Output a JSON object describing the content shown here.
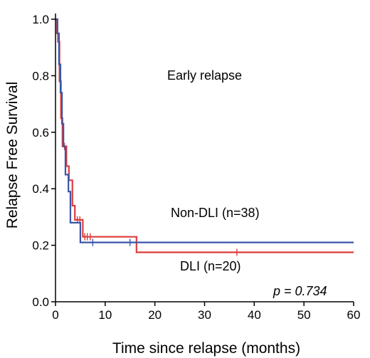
{
  "chart_data": {
    "type": "line",
    "title": "",
    "xlabel": "Time since relapse (months)",
    "ylabel": "Relapse Free Survival",
    "xlim": [
      0,
      60
    ],
    "ylim": [
      0.0,
      1.0
    ],
    "x_ticks": [
      "0",
      "10",
      "20",
      "30",
      "40",
      "50",
      "60"
    ],
    "y_ticks": [
      "0.0",
      "0.2",
      "0.4",
      "0.6",
      "0.8",
      "1.0"
    ],
    "grid": false,
    "annotations": {
      "subgroup": "Early relapse",
      "p_value": "p = 0.734"
    },
    "series": [
      {
        "name": "Non-DLI (n=38)",
        "color": "#3a56a8",
        "steps": [
          [
            0,
            1.0
          ],
          [
            0.4,
            0.95
          ],
          [
            0.7,
            0.84
          ],
          [
            1.0,
            0.74
          ],
          [
            1.3,
            0.63
          ],
          [
            1.6,
            0.55
          ],
          [
            2.0,
            0.45
          ],
          [
            2.6,
            0.39
          ],
          [
            3.0,
            0.28
          ],
          [
            5.0,
            0.21
          ],
          [
            60,
            0.21
          ]
        ],
        "censored": [
          [
            7.5,
            0.21
          ],
          [
            15,
            0.21
          ]
        ]
      },
      {
        "name": "DLI (n=20)",
        "color": "#dc3c3c",
        "steps": [
          [
            0,
            1.0
          ],
          [
            0.3,
            0.95
          ],
          [
            0.5,
            0.92
          ],
          [
            0.8,
            0.78
          ],
          [
            1.1,
            0.65
          ],
          [
            1.4,
            0.55
          ],
          [
            2.2,
            0.48
          ],
          [
            2.7,
            0.43
          ],
          [
            3.4,
            0.34
          ],
          [
            3.9,
            0.29
          ],
          [
            5.5,
            0.23
          ],
          [
            16.3,
            0.175
          ],
          [
            60,
            0.175
          ]
        ],
        "censored": [
          [
            1.8,
            0.55
          ],
          [
            4.4,
            0.29
          ],
          [
            4.9,
            0.29
          ],
          [
            5.9,
            0.23
          ],
          [
            6.4,
            0.23
          ],
          [
            7.0,
            0.23
          ],
          [
            36.5,
            0.175
          ]
        ]
      }
    ]
  }
}
